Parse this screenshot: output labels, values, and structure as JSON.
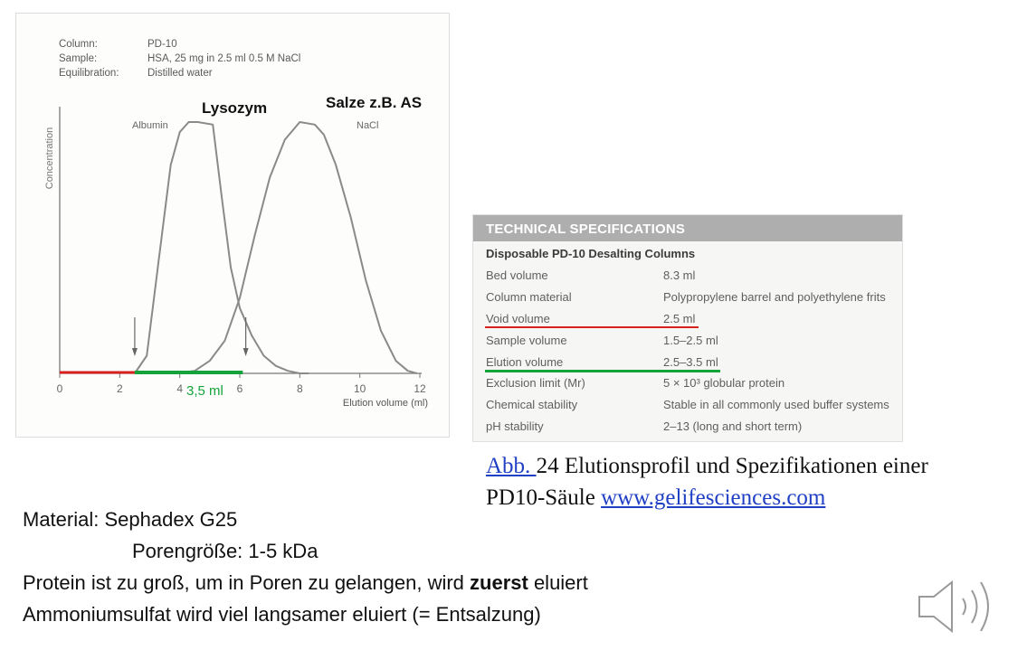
{
  "chart_data": {
    "type": "line",
    "meta": [
      {
        "key": "Column:",
        "value": "PD-10"
      },
      {
        "key": "Sample:",
        "value": "HSA, 25 mg in 2.5 ml 0.5 M NaCl"
      },
      {
        "key": "Equilibration:",
        "value": "Distilled water"
      }
    ],
    "xlabel": "Elution volume (ml)",
    "ylabel": "Concentration",
    "xlim": [
      0,
      12
    ],
    "xticks": [
      "0",
      "2",
      "4",
      "6",
      "8",
      "10",
      "12"
    ],
    "series": [
      {
        "name": "Albumin",
        "x": [
          2.5,
          2.9,
          3.3,
          3.7,
          4.0,
          4.3,
          4.6,
          5.1,
          5.4,
          5.7,
          6.0,
          6.4,
          6.8,
          7.2,
          7.6,
          8.0,
          8.3
        ],
        "y": [
          0.0,
          0.07,
          0.45,
          0.83,
          0.96,
          1.0,
          1.0,
          0.99,
          0.7,
          0.42,
          0.26,
          0.15,
          0.07,
          0.03,
          0.01,
          0.0,
          0.0
        ]
      },
      {
        "name": "NaCl",
        "x": [
          3.8,
          4.5,
          5.0,
          5.5,
          6.0,
          6.5,
          7.0,
          7.5,
          8.0,
          8.5,
          8.8,
          9.2,
          9.7,
          10.2,
          10.7,
          11.2,
          11.6,
          11.9
        ],
        "y": [
          0.0,
          0.01,
          0.05,
          0.13,
          0.3,
          0.55,
          0.78,
          0.93,
          1.0,
          0.99,
          0.95,
          0.83,
          0.62,
          0.37,
          0.17,
          0.05,
          0.01,
          0.0
        ]
      }
    ],
    "annotations": {
      "lysozym": "Lysozym",
      "salze": "Salze z.B. AS",
      "albumin": "Albumin",
      "nacl": "NaCl",
      "volume": "3,5 ml"
    },
    "markers": {
      "arrows_x": [
        2.5,
        6.2
      ],
      "red_segment": [
        0,
        2.5
      ],
      "green_segment": [
        2.5,
        6.1
      ]
    },
    "colors": {
      "curve": "#8a8a8a",
      "red": "#d8201e",
      "green": "#14a33a"
    }
  },
  "spec": {
    "header": "TECHNICAL SPECIFICATIONS",
    "subheader": "Disposable PD-10 Desalting Columns",
    "rows": [
      {
        "key": "Bed volume",
        "value": "8.3 ml"
      },
      {
        "key": "Column material",
        "value": "Polypropylene barrel and polyethylene frits"
      },
      {
        "key": "Void volume",
        "value": "2.5 ml"
      },
      {
        "key": "Sample volume",
        "value": "1.5–2.5 ml"
      },
      {
        "key": "Elution volume",
        "value": "2.5–3.5 ml"
      },
      {
        "key": "Exclusion limit (Mr)",
        "value": "5 × 10³ globular protein"
      },
      {
        "key": "Chemical stability",
        "value": "Stable in all commonly used buffer systems"
      },
      {
        "key": "pH stability",
        "value": "2–13 (long and short term)"
      }
    ]
  },
  "caption": {
    "link1": "Abb. ",
    "text": "24 Elutionsprofil und Spezifikationen einer PD10-Säule ",
    "link2": "www.gelifesciences.com"
  },
  "notes": {
    "line1": "Material: Sephadex G25",
    "line2": "Porengröße: 1-5 kDa",
    "line3_pre": "Protein ist zu groß, um in Poren zu gelangen, wird ",
    "line3_bold": "zuerst",
    "line3_post": " eluiert",
    "line4": "Ammoniumsulfat wird viel langsamer eluiert (= Entsalzung)"
  },
  "icons": {
    "speaker": "speaker-icon"
  }
}
